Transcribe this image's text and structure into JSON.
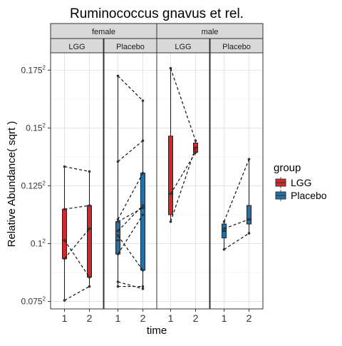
{
  "chart_data": {
    "type": "box",
    "title": "Ruminococcus gnavus et rel.",
    "xlabel": "time",
    "ylabel": "Relative Abundance( sqrt )",
    "facet_rows": [
      "female",
      "male"
    ],
    "facet_cols": [
      "LGG",
      "Placebo"
    ],
    "x_ticks": [
      "1",
      "2"
    ],
    "y_ticks": [
      {
        "value": 0.075,
        "label": "0.075",
        "sup": "2"
      },
      {
        "value": 0.1,
        "label": "0.1",
        "sup": "2"
      },
      {
        "value": 0.125,
        "label": "0.125",
        "sup": "2"
      },
      {
        "value": 0.15,
        "label": "0.15",
        "sup": "2"
      },
      {
        "value": 0.175,
        "label": "0.175",
        "sup": "2"
      }
    ],
    "ylim": [
      0.0718,
      0.1825
    ],
    "y_scale": "sqrt",
    "grid": true,
    "legend": {
      "title": "group",
      "position": "right",
      "entries": [
        {
          "name": "LGG",
          "color": "#d7262b"
        },
        {
          "name": "Placebo",
          "color": "#2470a8"
        }
      ]
    },
    "panels": [
      {
        "sex": "female",
        "group": "LGG",
        "color": "#d7262b",
        "boxes": [
          {
            "x": "1",
            "min": 0.0755,
            "q1": 0.0935,
            "median": 0.1015,
            "q3": 0.1149,
            "max": 0.1333
          },
          {
            "x": "2",
            "min": 0.0815,
            "q1": 0.0855,
            "median": 0.1065,
            "q3": 0.1165,
            "max": 0.1312
          }
        ],
        "pairs": [
          [
            0.1333,
            0.1312
          ],
          [
            0.1149,
            0.1165
          ],
          [
            0.1015,
            0.0855
          ],
          [
            0.0935,
            0.1065
          ],
          [
            0.0755,
            0.0815
          ]
        ]
      },
      {
        "sex": "female",
        "group": "Placebo",
        "color": "#2470a8",
        "boxes": [
          {
            "x": "1",
            "min": 0.0815,
            "q1": 0.0955,
            "median": 0.1015,
            "q3": 0.1095,
            "max": 0.1725
          },
          {
            "x": "2",
            "min": 0.0805,
            "q1": 0.0885,
            "median": 0.1155,
            "q3": 0.1305,
            "max": 0.1618
          }
        ],
        "pairs": [
          [
            0.1725,
            0.1618
          ],
          [
            0.1355,
            0.1445
          ],
          [
            0.1105,
            0.1305
          ],
          [
            0.1095,
            0.1155
          ],
          [
            0.1055,
            0.1165
          ],
          [
            0.1035,
            0.0885
          ],
          [
            0.0955,
            0.1125
          ],
          [
            0.0835,
            0.0805
          ],
          [
            0.0815,
            0.0815
          ]
        ]
      },
      {
        "sex": "male",
        "group": "LGG",
        "color": "#d7262b",
        "boxes": [
          {
            "x": "1",
            "min": 0.1095,
            "q1": 0.1125,
            "median": 0.1215,
            "q3": 0.1465,
            "max": 0.1758
          },
          {
            "x": "2",
            "min": 0.1385,
            "q1": 0.1395,
            "median": 0.1415,
            "q3": 0.1435,
            "max": 0.1445
          }
        ],
        "pairs": [
          [
            0.1758,
            0.1445
          ],
          [
            0.1215,
            0.1395
          ],
          [
            0.1095,
            0.1415
          ]
        ]
      },
      {
        "sex": "male",
        "group": "Placebo",
        "color": "#2470a8",
        "boxes": [
          {
            "x": "1",
            "min": 0.0975,
            "q1": 0.1025,
            "median": 0.1055,
            "q3": 0.1085,
            "max": 0.1095
          },
          {
            "x": "2",
            "min": 0.1045,
            "q1": 0.1085,
            "median": 0.1105,
            "q3": 0.1165,
            "max": 0.1365
          }
        ],
        "pairs": [
          [
            0.1095,
            0.1365
          ],
          [
            0.1065,
            0.1105
          ],
          [
            0.0975,
            0.1045
          ]
        ]
      }
    ]
  }
}
